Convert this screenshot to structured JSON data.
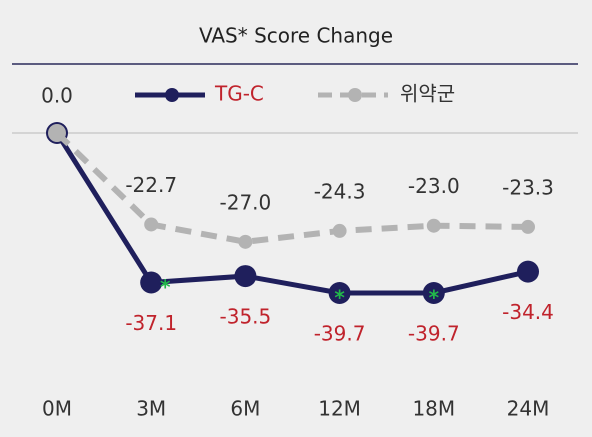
{
  "chart_data": {
    "type": "line",
    "title": "VAS* Score Change",
    "categories": [
      "0M",
      "3M",
      "6M",
      "12M",
      "18M",
      "24M"
    ],
    "series": [
      {
        "name": "TG-C",
        "color": "#1f1f5c",
        "label_color": "#c0232c",
        "values": [
          0,
          -37.1,
          -35.5,
          -39.7,
          -39.7,
          -34.4
        ],
        "value_labels": [
          "0.0",
          "-37.1",
          "-35.5",
          "-39.7",
          "-39.7",
          "-34.4"
        ],
        "significance_marks": [
          null,
          "*",
          null,
          "*",
          "*",
          null
        ]
      },
      {
        "name": "위약군",
        "color": "#b3b3b3",
        "label_color": "#333333",
        "dashed": true,
        "values": [
          0,
          -22.7,
          -27.0,
          -24.3,
          -23.0,
          -23.3
        ],
        "value_labels": [
          null,
          "-22.7",
          "-27.0",
          "-24.3",
          "-23.0",
          "-23.3"
        ]
      }
    ],
    "mark_color": "#22b84a",
    "legend": "top"
  }
}
